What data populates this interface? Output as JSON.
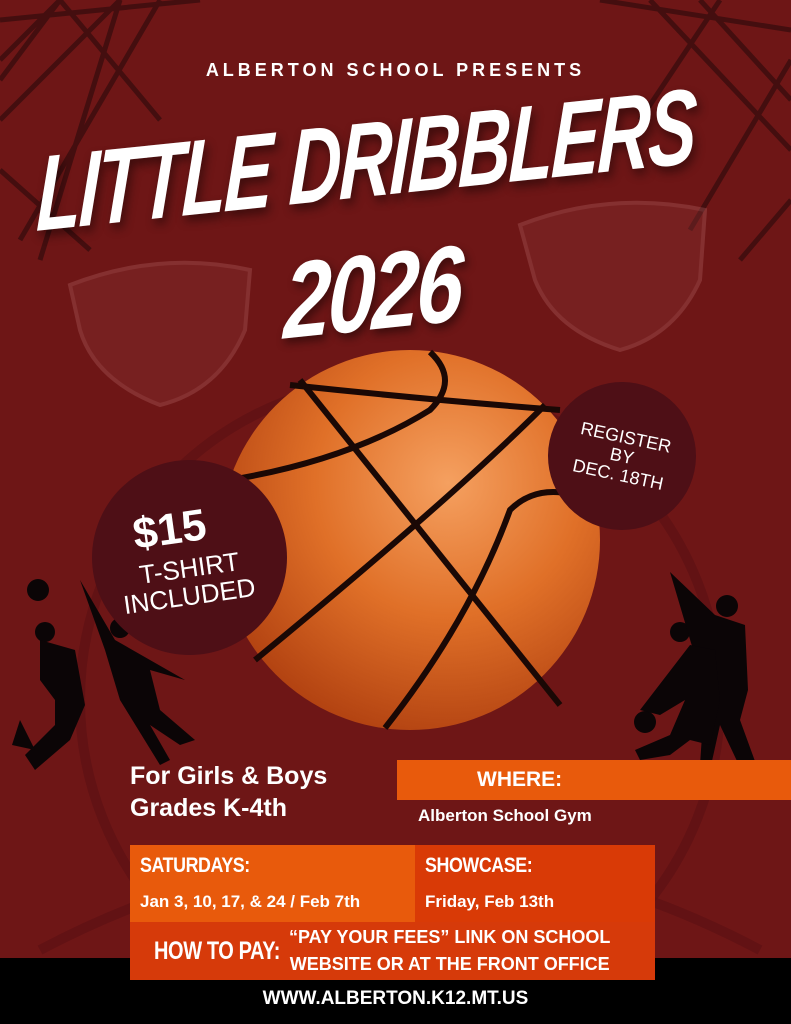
{
  "presents": "ALBERTON SCHOOL PRESENTS",
  "title_line1": "LITTLE DRIBBLERS",
  "title_line2": "2026",
  "price": {
    "amount": "$15",
    "line1": "T-SHIRT",
    "line2": "INCLUDED"
  },
  "register": {
    "line1": "REGISTER",
    "line2": "BY",
    "line3": "DEC. 18TH"
  },
  "audience": {
    "line1": "For Girls & Boys",
    "line2": "Grades K-4th"
  },
  "where": {
    "label": "WHERE:",
    "value": "Alberton School Gym"
  },
  "saturdays": {
    "label": "SATURDAYS:",
    "value": "Jan 3, 10, 17, & 24 / Feb 7th"
  },
  "showcase": {
    "label": "SHOWCASE:",
    "value": "Friday, Feb 13th"
  },
  "pay": {
    "label": "HOW TO PAY:",
    "line1": "“PAY YOUR FEES” LINK ON SCHOOL",
    "line2": "WEBSITE OR AT THE FRONT OFFICE"
  },
  "url": "WWW.ALBERTON.K12.MT.US",
  "colors": {
    "background": "#6e1616",
    "orange": "#e85a0c",
    "dark_orange": "#d93a06",
    "circle": "#4e0f16"
  }
}
